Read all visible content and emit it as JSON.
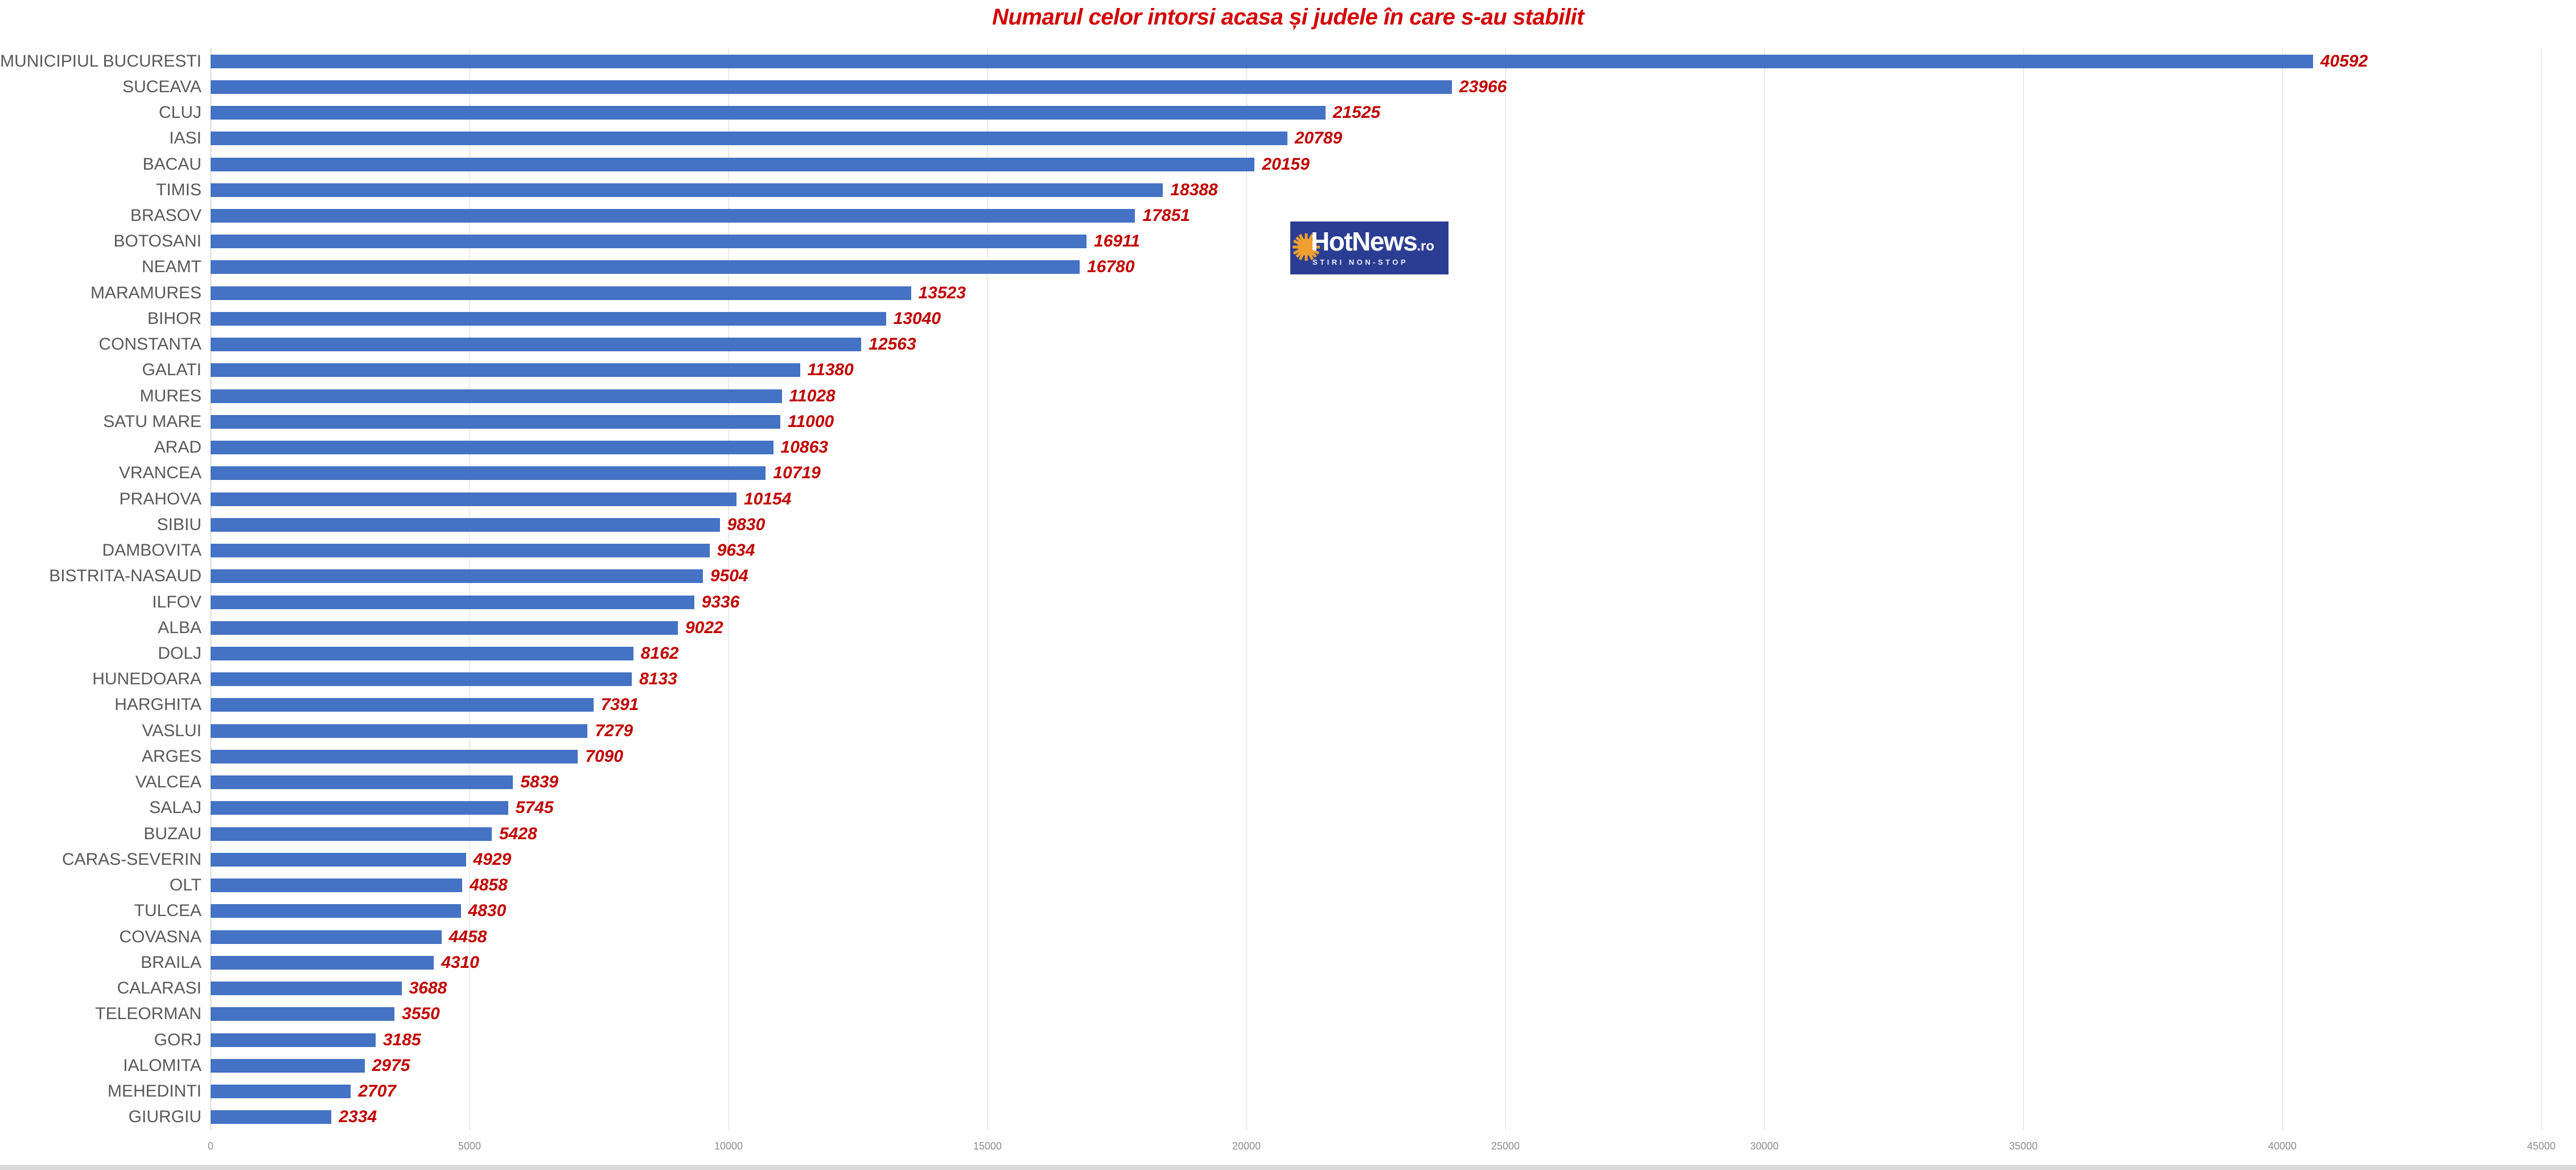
{
  "title": "Numarul celor intorsi acasa și judele în care s-au stabilit",
  "logo": {
    "brand": "HotNews",
    "tld": ".ro",
    "tagline": "STIRI NON-STOP"
  },
  "colors": {
    "bar": "#4472C4",
    "title_text": "#D40000",
    "value_label": "#C00000",
    "category_label": "#595959",
    "axis_tick": "#8C8C8C",
    "gridline": "#D9D9D9",
    "axis_line": "#BFBFBF",
    "logo_background": "#2B3D92",
    "logo_sun": "#F0A030"
  },
  "chart_data": {
    "type": "bar",
    "orientation": "horizontal",
    "title": "Numarul celor intorsi acasa și judele în care s-au stabilit",
    "categories": [
      "MUNICIPIUL BUCURESTI",
      "SUCEAVA",
      "CLUJ",
      "IASI",
      "BACAU",
      "TIMIS",
      "BRASOV",
      "BOTOSANI",
      "NEAMT",
      "MARAMURES",
      "BIHOR",
      "CONSTANTA",
      "GALATI",
      "MURES",
      "SATU MARE",
      "ARAD",
      "VRANCEA",
      "PRAHOVA",
      "SIBIU",
      "DAMBOVITA",
      "BISTRITA-NASAUD",
      "ILFOV",
      "ALBA",
      "DOLJ",
      "HUNEDOARA",
      "HARGHITA",
      "VASLUI",
      "ARGES",
      "VALCEA",
      "SALAJ",
      "BUZAU",
      "CARAS-SEVERIN",
      "OLT",
      "TULCEA",
      "COVASNA",
      "BRAILA",
      "CALARASI",
      "TELEORMAN",
      "GORJ",
      "IALOMITA",
      "MEHEDINTI",
      "GIURGIU"
    ],
    "values": [
      40592,
      23966,
      21525,
      20789,
      20159,
      18388,
      17851,
      16911,
      16780,
      13523,
      13040,
      12563,
      11380,
      11028,
      11000,
      10863,
      10719,
      10154,
      9830,
      9634,
      9504,
      9336,
      9022,
      8162,
      8133,
      7391,
      7279,
      7090,
      5839,
      5745,
      5428,
      4929,
      4858,
      4830,
      4458,
      4310,
      3688,
      3550,
      3185,
      2975,
      2707,
      2334
    ],
    "xlabel": "",
    "ylabel": "",
    "xlim": [
      0,
      45000
    ],
    "x_ticks": [
      0,
      5000,
      10000,
      15000,
      20000,
      25000,
      30000,
      35000,
      40000,
      45000
    ],
    "x_tick_labels": [
      "0",
      "5000",
      "10000",
      "15000",
      "20000",
      "25000",
      "30000",
      "35000",
      "40000",
      "45000"
    ],
    "grid": true,
    "legend": "none",
    "value_labels": true
  }
}
